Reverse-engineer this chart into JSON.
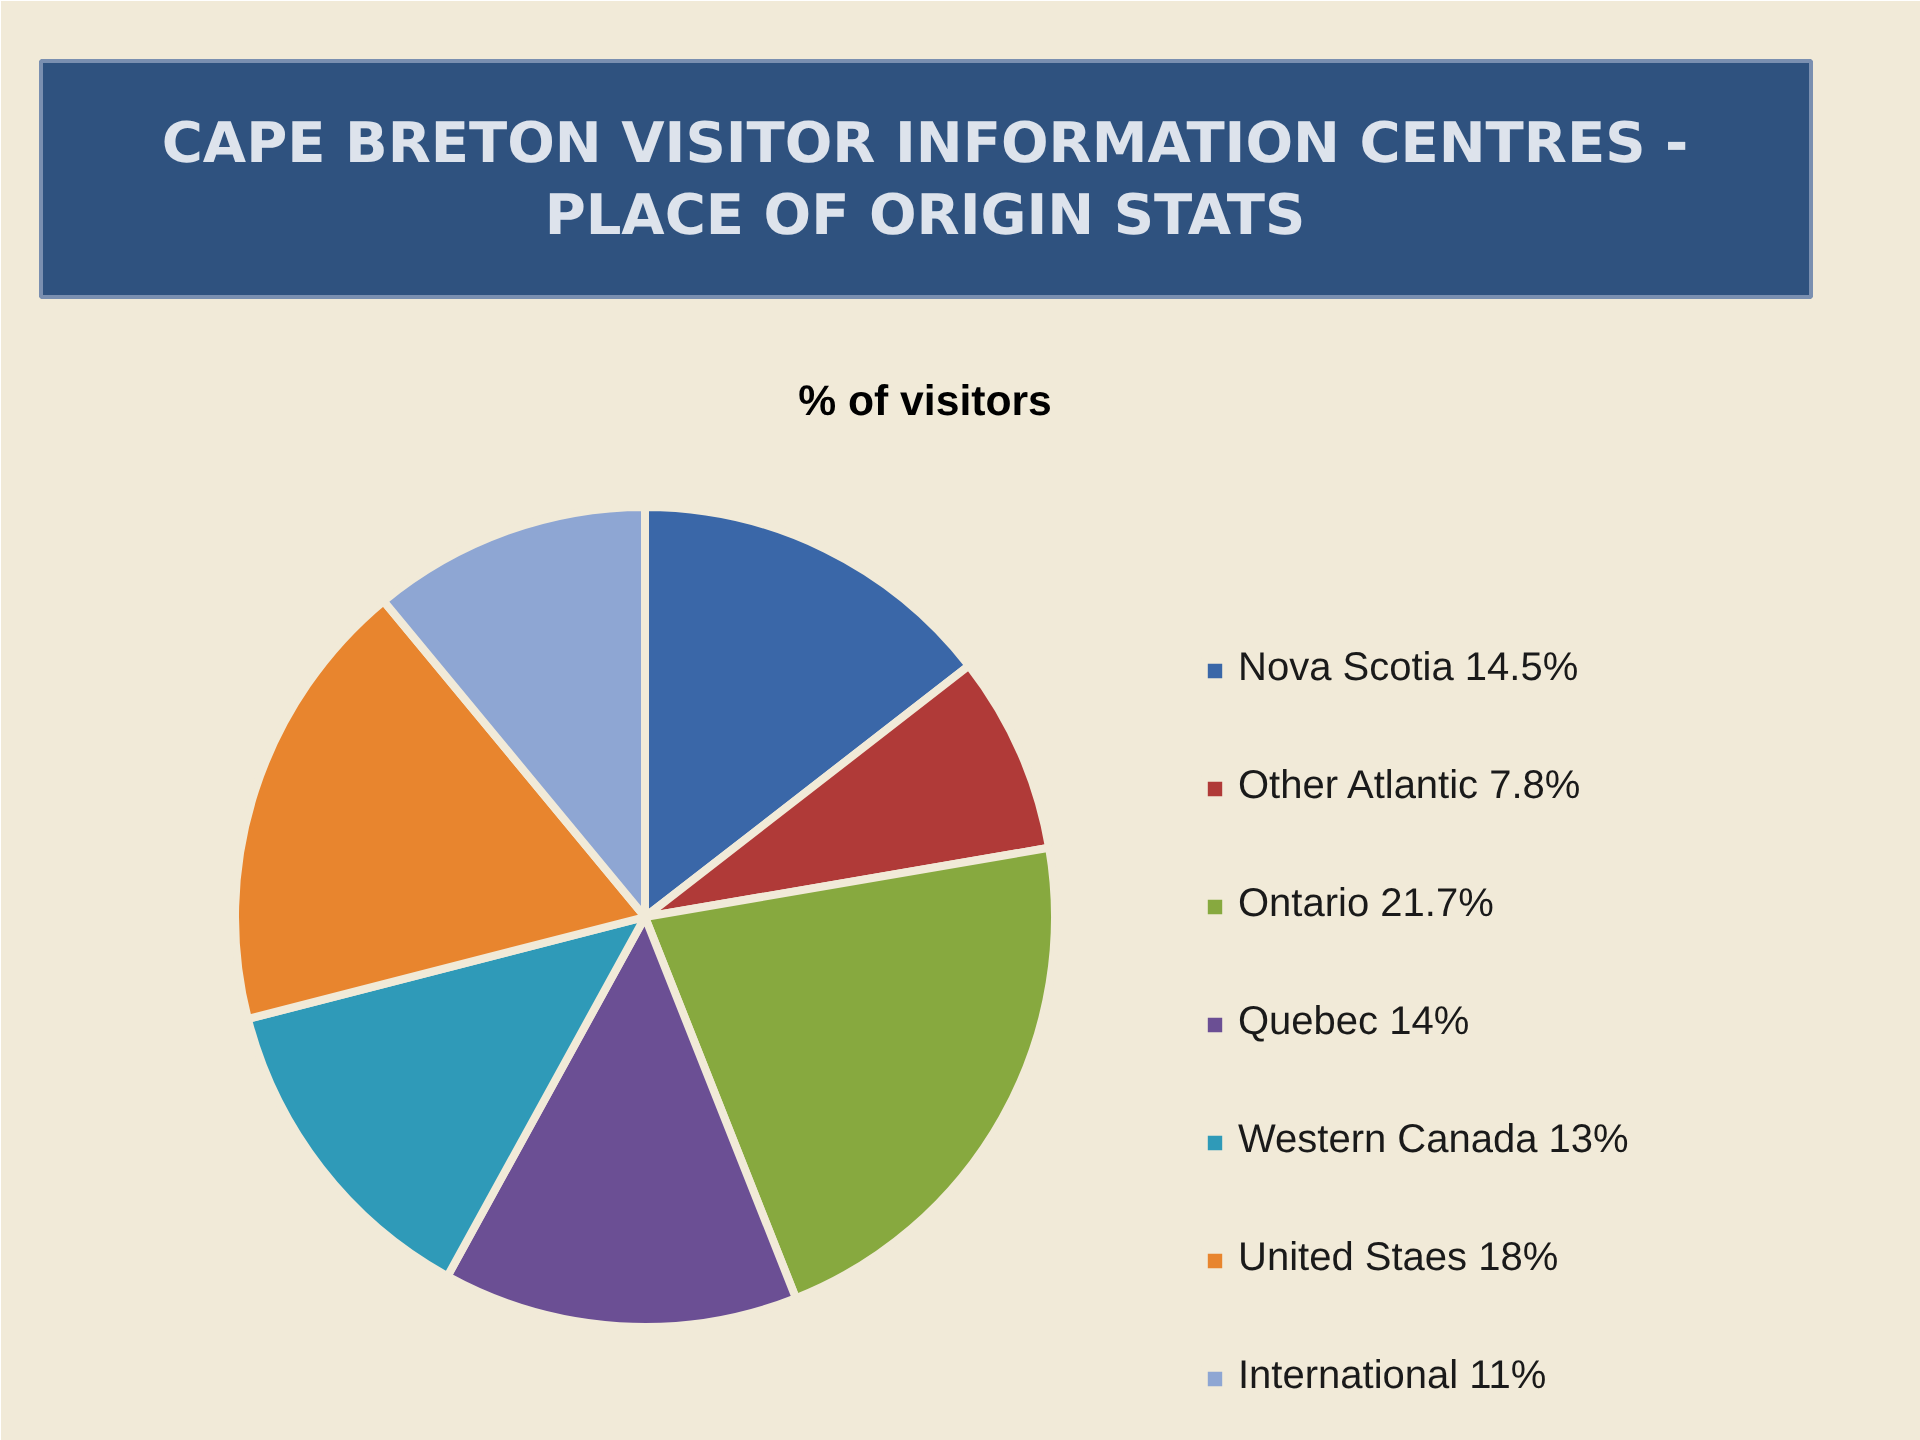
{
  "chart_data": {
    "type": "pie",
    "title": "CAPE BRETON VISITOR INFORMATION CENTRES -\nPLACE OF ORIGIN STATS",
    "subtitle": "% of visitors",
    "categories": [
      "Nova Scotia 14.5%",
      "Other Atlantic 7.8%",
      "Ontario 21.7%",
      "Quebec 14%",
      "Western Canada 13%",
      "United Staes 18%",
      "International 11%"
    ],
    "values": [
      14.5,
      7.8,
      21.7,
      14,
      13,
      18,
      11
    ],
    "colors": [
      "#3a67a8",
      "#b03a38",
      "#87a93f",
      "#6b4f94",
      "#2f9ab8",
      "#e8852e",
      "#8ea6d3"
    ],
    "legend": "right"
  }
}
